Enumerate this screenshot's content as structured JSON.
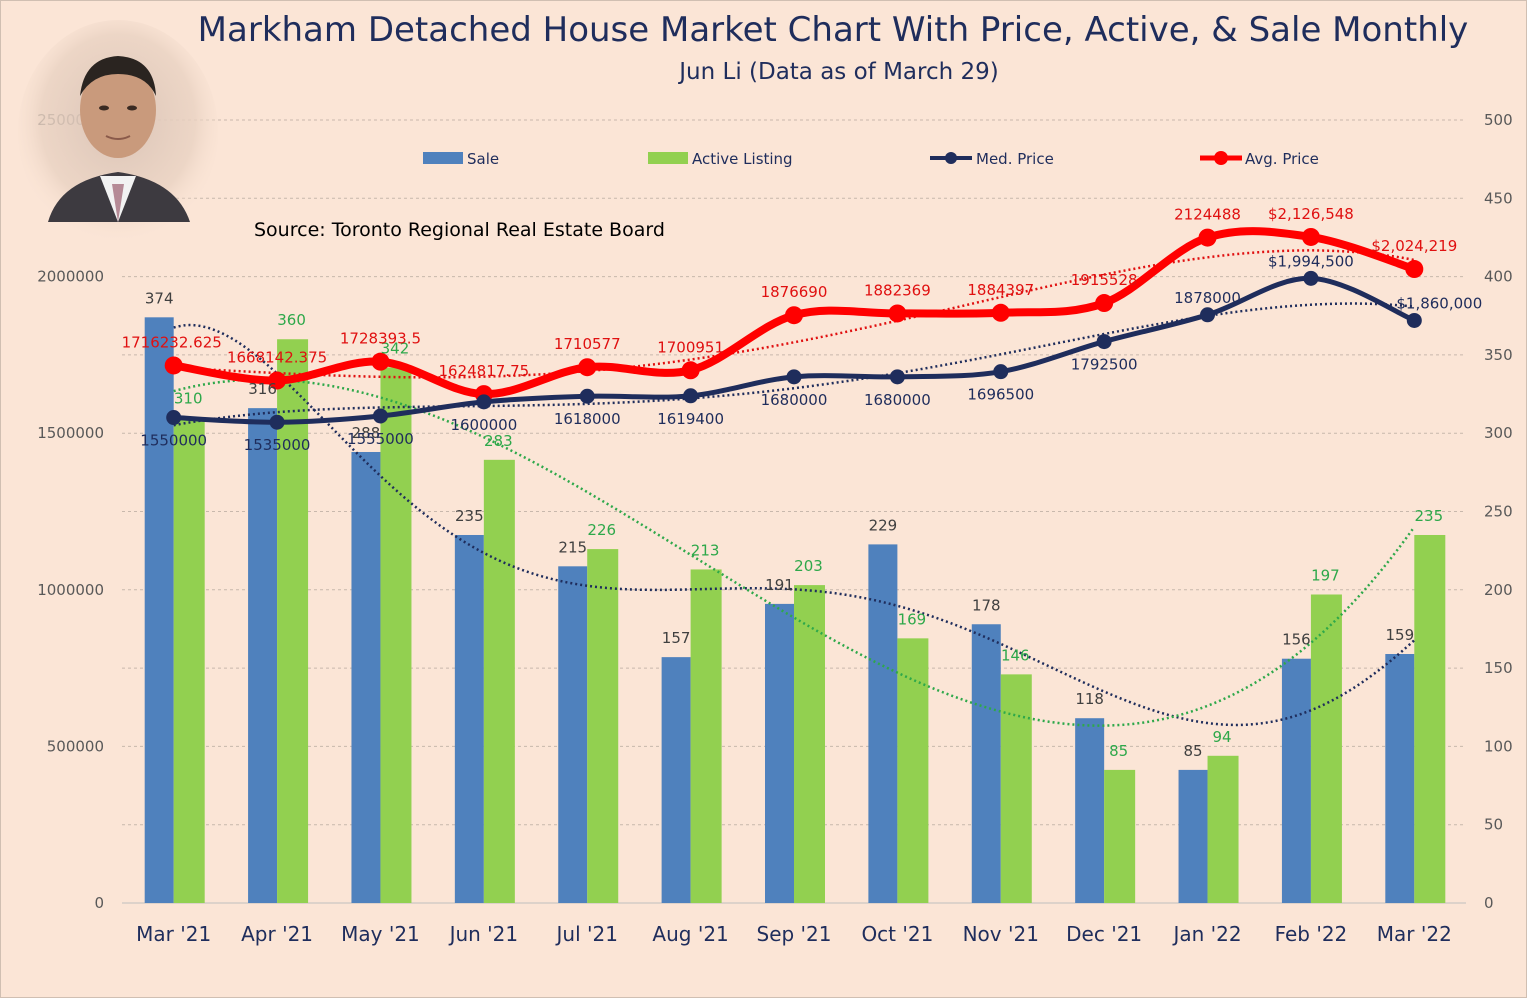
{
  "chart_data": {
    "type": "bar",
    "title": "Markham Detached House Market Chart With Price, Active, & Sale Monthly",
    "subtitle": "Jun Li (Data as of March 29)",
    "source": "Source: Toronto Regional Real Estate Board",
    "categories": [
      "Mar '21",
      "Apr '21",
      "May '21",
      "Jun '21",
      "Jul '21",
      "Aug '21",
      "Sep '21",
      "Oct '21",
      "Nov '21",
      "Dec '21",
      "Jan '22",
      "Feb '22",
      "Mar '22"
    ],
    "left_axis": {
      "ylim": [
        0,
        2500000
      ],
      "ticks": [
        "0",
        "500000",
        "1000000",
        "1500000",
        "2000000",
        "2500000"
      ]
    },
    "right_axis": {
      "ylim": [
        0,
        500
      ],
      "ticks": [
        "0",
        "50",
        "100",
        "150",
        "200",
        "250",
        "300",
        "350",
        "400",
        "450",
        "500"
      ]
    },
    "grid": true,
    "legend_position": "top",
    "series": [
      {
        "name": "Sale",
        "kind": "bar",
        "axis": "right",
        "color": "#4f81bd",
        "values": [
          374,
          316,
          288,
          235,
          215,
          157,
          191,
          229,
          178,
          118,
          85,
          156,
          159
        ],
        "labels": [
          "374",
          "316",
          "288",
          "235",
          "215",
          "157",
          "191",
          "229",
          "178",
          "118",
          "85",
          "156",
          "159"
        ]
      },
      {
        "name": "Active Listing",
        "kind": "bar",
        "axis": "right",
        "color": "#92d050",
        "values": [
          310,
          360,
          342,
          283,
          226,
          213,
          203,
          169,
          146,
          85,
          94,
          197,
          235
        ],
        "labels": [
          "310",
          "360",
          "342",
          "283",
          "226",
          "213",
          "203",
          "169",
          "146",
          "85",
          "94",
          "197",
          "235"
        ]
      },
      {
        "name": "Med. Price",
        "kind": "line",
        "axis": "left",
        "color": "#1f2d5c",
        "values": [
          1550000,
          1535000,
          1555000,
          1600000,
          1618000,
          1619400,
          1680000,
          1680000,
          1696500,
          1792500,
          1878000,
          1994500,
          1860000
        ],
        "labels": [
          "1550000",
          "1535000",
          "1555000",
          "1600000",
          "1618000",
          "1619400",
          "1680000",
          "1680000",
          "1696500",
          "1792500",
          "1878000",
          "$1,994,500",
          "$1,860,000"
        ]
      },
      {
        "name": "Avg. Price",
        "kind": "line",
        "axis": "left",
        "color": "#ff0000",
        "values": [
          1716232.625,
          1668142.375,
          1728393.5,
          1624817.75,
          1710577,
          1700951,
          1876690,
          1882369,
          1884397,
          1915528,
          2124488,
          2126548,
          2024219
        ],
        "labels": [
          "1716232.625",
          "1668142.375",
          "1728393.5",
          "1624817.75",
          "1710577",
          "1700951",
          "1876690",
          "1882369",
          "1884397",
          "1915528",
          "2124488",
          "$2,126,548",
          "$2,024,219"
        ]
      }
    ]
  }
}
